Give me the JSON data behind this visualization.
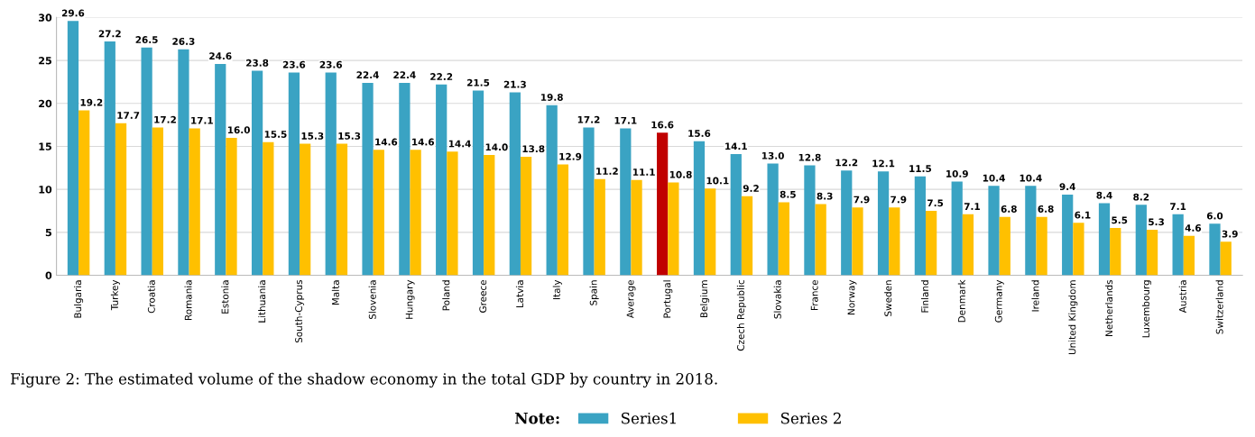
{
  "chart_data": {
    "type": "bar",
    "categories": [
      "Bulgaria",
      "Turkey",
      "Croatia",
      "Romania",
      "Estonia",
      "Lithuania",
      "South-Cyprus",
      "Malta",
      "Slovenia",
      "Hungary",
      "Poland",
      "Greece",
      "Latvia",
      "Italy",
      "Spain",
      "Average",
      "Portugal",
      "Belgium",
      "Czech Republic",
      "Slovakia",
      "France",
      "Norway",
      "Sweden",
      "Finland",
      "Denmark",
      "Germany",
      "Ireland",
      "United Kingdom",
      "Netherlands",
      "Luxembourg",
      "Austria",
      "Switzerland"
    ],
    "series": [
      {
        "name": "Series1",
        "color": "#3aa3c3",
        "value_labels": [
          "29.6",
          "27.2",
          "26.5",
          "26.3",
          "24.6",
          "23.8",
          "23.6",
          "23.6",
          "22.4",
          "22.4",
          "22.2",
          "21.5",
          "21.3",
          "19.8",
          "17.2",
          "17.1",
          "16.6",
          "15.6",
          "14.1",
          "13.0",
          "12.8",
          "12.2",
          "12.1",
          "11.5",
          "10.9",
          "10.4",
          "10.4",
          "9.4",
          "8.4",
          "8.2",
          "7.1",
          "6.0"
        ],
        "colors": [
          "#3aa3c3",
          "#3aa3c3",
          "#3aa3c3",
          "#3aa3c3",
          "#3aa3c3",
          "#3aa3c3",
          "#3aa3c3",
          "#3aa3c3",
          "#3aa3c3",
          "#3aa3c3",
          "#3aa3c3",
          "#3aa3c3",
          "#3aa3c3",
          "#3aa3c3",
          "#3aa3c3",
          "#3aa3c3",
          "#c00000",
          "#3aa3c3",
          "#3aa3c3",
          "#3aa3c3",
          "#3aa3c3",
          "#3aa3c3",
          "#3aa3c3",
          "#3aa3c3",
          "#3aa3c3",
          "#3aa3c3",
          "#3aa3c3",
          "#3aa3c3",
          "#3aa3c3",
          "#3aa3c3",
          "#3aa3c3",
          "#3aa3c3"
        ],
        "values": [
          29.6,
          27.2,
          26.5,
          26.3,
          24.6,
          23.8,
          23.6,
          23.6,
          22.4,
          22.4,
          22.2,
          21.5,
          21.3,
          19.8,
          17.2,
          17.1,
          16.6,
          15.6,
          14.1,
          13.0,
          12.8,
          12.2,
          12.1,
          11.5,
          10.9,
          10.4,
          10.4,
          9.4,
          8.4,
          8.2,
          7.1,
          6.0
        ]
      },
      {
        "name": "Series 2",
        "color": "#ffc000",
        "value_labels": [
          "19.2",
          "17.7",
          "17.2",
          "17.1",
          "16.0",
          "15.5",
          "15.3",
          "15.3",
          "14.6",
          "14.6",
          "14.4",
          "14.0",
          "13.8",
          "12.9",
          "11.2",
          "11.1",
          "10.8",
          "10.1",
          "9.2",
          "8.5",
          "8.3",
          "7.9",
          "7.9",
          "7.5",
          "7.1",
          "6.8",
          "6.8",
          "6.1",
          "5.5",
          "5.3",
          "4.6",
          "3.9"
        ],
        "values": [
          19.2,
          17.7,
          17.2,
          17.1,
          16.0,
          15.5,
          15.3,
          15.3,
          14.6,
          14.6,
          14.4,
          14.0,
          13.8,
          12.9,
          11.2,
          11.1,
          10.8,
          10.1,
          9.2,
          8.5,
          8.3,
          7.9,
          7.9,
          7.5,
          7.1,
          6.8,
          6.8,
          6.1,
          5.5,
          5.3,
          4.6,
          3.9
        ]
      }
    ],
    "ylim": [
      0,
      30
    ],
    "yticks": [
      0,
      5,
      10,
      15,
      20,
      25,
      30
    ],
    "grid": "y",
    "legend": "bottom",
    "annotations": [
      "Figure 2: The estimated volume of the shadow economy in the total GDP by country in 2018.",
      "Note:"
    ]
  }
}
